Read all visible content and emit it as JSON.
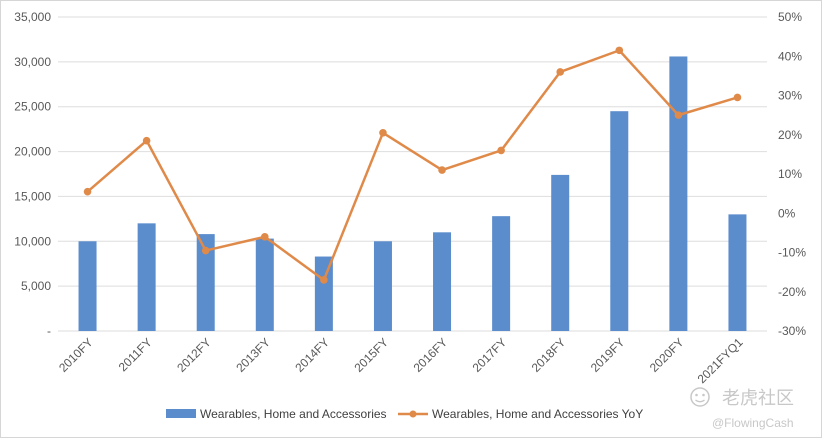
{
  "chart_data": {
    "type": "bar",
    "categories": [
      "2010FY",
      "2011FY",
      "2012FY",
      "2013FY",
      "2014FY",
      "2015FY",
      "2016FY",
      "2017FY",
      "2018FY",
      "2019FY",
      "2020FY",
      "2021FYQ1"
    ],
    "series": [
      {
        "name": "Wearables, Home and Accessories",
        "type": "bar",
        "axis": "left",
        "color": "#5b8ccc",
        "values": [
          10000,
          12000,
          10800,
          10300,
          8300,
          10000,
          11000,
          12800,
          17400,
          24500,
          30600,
          13000
        ]
      },
      {
        "name": "Wearables, Home and Accessories YoY",
        "type": "line",
        "axis": "right",
        "color": "#e08a4a",
        "values": [
          5.5,
          18.5,
          -9.5,
          -6,
          -17,
          20.5,
          11,
          16,
          36,
          41.5,
          25,
          29.5
        ]
      }
    ],
    "y_left": {
      "ylim": [
        0,
        35000
      ],
      "ticks": [
        "-",
        "5,000",
        "10,000",
        "15,000",
        "20,000",
        "25,000",
        "30,000",
        "35,000"
      ]
    },
    "y_right": {
      "ylim": [
        -30,
        50
      ],
      "ticks": [
        "-30%",
        "-20%",
        "-10%",
        "0%",
        "10%",
        "20%",
        "30%",
        "40%",
        "50%"
      ]
    },
    "grid": true,
    "legend_placement": "bottom-center"
  },
  "watermark": {
    "brand": "老虎社区",
    "handle": "@FlowingCash"
  }
}
